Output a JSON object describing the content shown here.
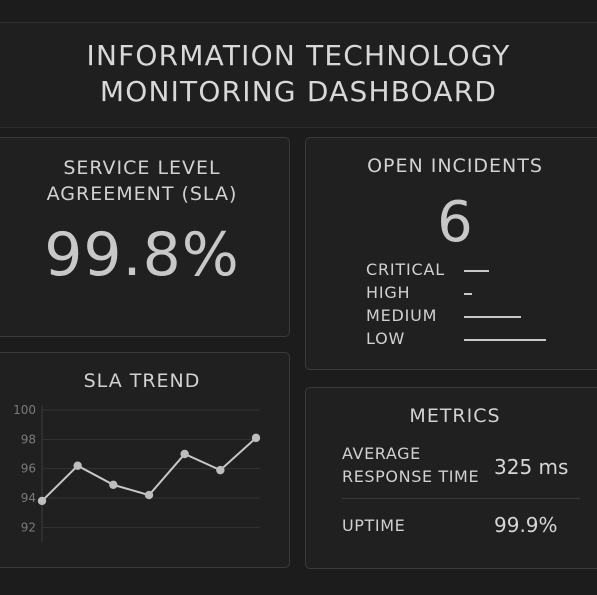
{
  "header": {
    "title_line1": "INFORMATION TECHNOLOGY",
    "title_line2": "MONITORING DASHBOARD"
  },
  "sla": {
    "heading_line1": "SERVICE LEVEL",
    "heading_line2": "AGREEMENT (SLA)",
    "value": "99.8%"
  },
  "incidents": {
    "heading": "OPEN INCIDENTS",
    "count": "6",
    "rows": [
      {
        "label": "CRITICAL",
        "level": 0.3
      },
      {
        "label": "HIGH",
        "level": 0.1
      },
      {
        "label": "MEDIUM",
        "level": 0.7
      },
      {
        "label": "LOW",
        "level": 1.0
      }
    ]
  },
  "trend": {
    "heading": "SLA TREND"
  },
  "metrics": {
    "heading": "METRICS",
    "response_label_line1": "AVERAGE",
    "response_label_line2": "RESPONSE TIME",
    "response_value": "325 ms",
    "uptime_label": "UPTIME",
    "uptime_value": "99.9%"
  },
  "colors": {
    "background": "#1c1c1c",
    "panel": "#202020",
    "border": "#3a3a3a",
    "text": "#d4d4d4",
    "line": "#c8c8c8"
  },
  "chart_data": {
    "type": "line",
    "x": [
      1,
      2,
      3,
      4,
      5,
      6,
      7
    ],
    "values": [
      93.8,
      96.2,
      94.9,
      94.2,
      97.0,
      95.9,
      98.1
    ],
    "ylim": [
      91,
      100
    ],
    "yticks": [
      100,
      98,
      96,
      94,
      92
    ],
    "grid": true
  }
}
